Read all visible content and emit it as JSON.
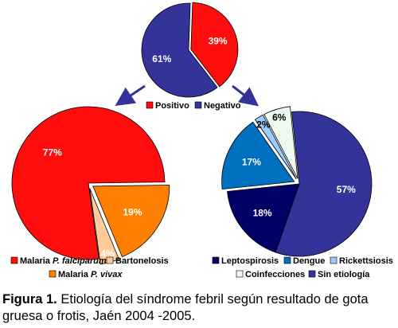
{
  "chart_data": [
    {
      "type": "pie",
      "slices": [
        {
          "label": "Positivo",
          "value": 39,
          "display": "39%",
          "color": "#ff0d0d"
        },
        {
          "label": "Negativo",
          "value": 61,
          "display": "61%",
          "color": "#33339a"
        }
      ],
      "legend": [
        "Positivo",
        "Negativo"
      ],
      "legend_position": "bottom"
    },
    {
      "type": "pie",
      "slices": [
        {
          "label": "Malaria P. falciparum",
          "value": 77,
          "display": "77%",
          "color": "#ff0d0d"
        },
        {
          "label": "Malaria P. vivax",
          "value": 19,
          "display": "19%",
          "color": "#ff8000"
        },
        {
          "label": "Bartonelosis",
          "value": 4,
          "display": "4%",
          "color": "#ffcc99"
        }
      ],
      "legend": [
        "Malaria P. falciparum",
        "Bartonelosis",
        "Malaria P. vivax"
      ],
      "legend_position": "bottom"
    },
    {
      "type": "pie",
      "slices": [
        {
          "label": "Sin etiología",
          "value": 57,
          "display": "57%",
          "color": "#333399"
        },
        {
          "label": "Leptospirosis",
          "value": 18,
          "display": "18%",
          "color": "#000066"
        },
        {
          "label": "Dengue",
          "value": 17,
          "display": "17%",
          "color": "#0070c0"
        },
        {
          "label": "Rickettsiosis",
          "value": 2,
          "display": "2%",
          "color": "#99ccff"
        },
        {
          "label": "Coinfecciones",
          "value": 6,
          "display": "6%",
          "color": "#eefaee"
        }
      ],
      "legend": [
        "Leptospirosis",
        "Dengue",
        "Rickettsiosis",
        "Coinfecciones",
        "Sin etiología"
      ],
      "legend_position": "bottom"
    }
  ],
  "legend_text": {
    "positivo": "Positivo",
    "negativo": "Negativo",
    "malaria_prefix_1": "Malaria ",
    "falciparum": "P. falciparum",
    "bartonelosis": "Bartonelosis",
    "malaria_prefix_2": "Malaria ",
    "vivax": "P. vivax",
    "leptospirosis": "Leptospirosis",
    "dengue": "Dengue",
    "rickettsiosis": "Rickettsiosis",
    "coinfecciones": "Coinfecciones",
    "sin_etiologia": "Sin etiología"
  },
  "caption": {
    "label": "Figura 1.",
    "text": " Etiología del síndrome febril según resultado de gota gruesa o frotis, Jaén 2004 -2005."
  }
}
